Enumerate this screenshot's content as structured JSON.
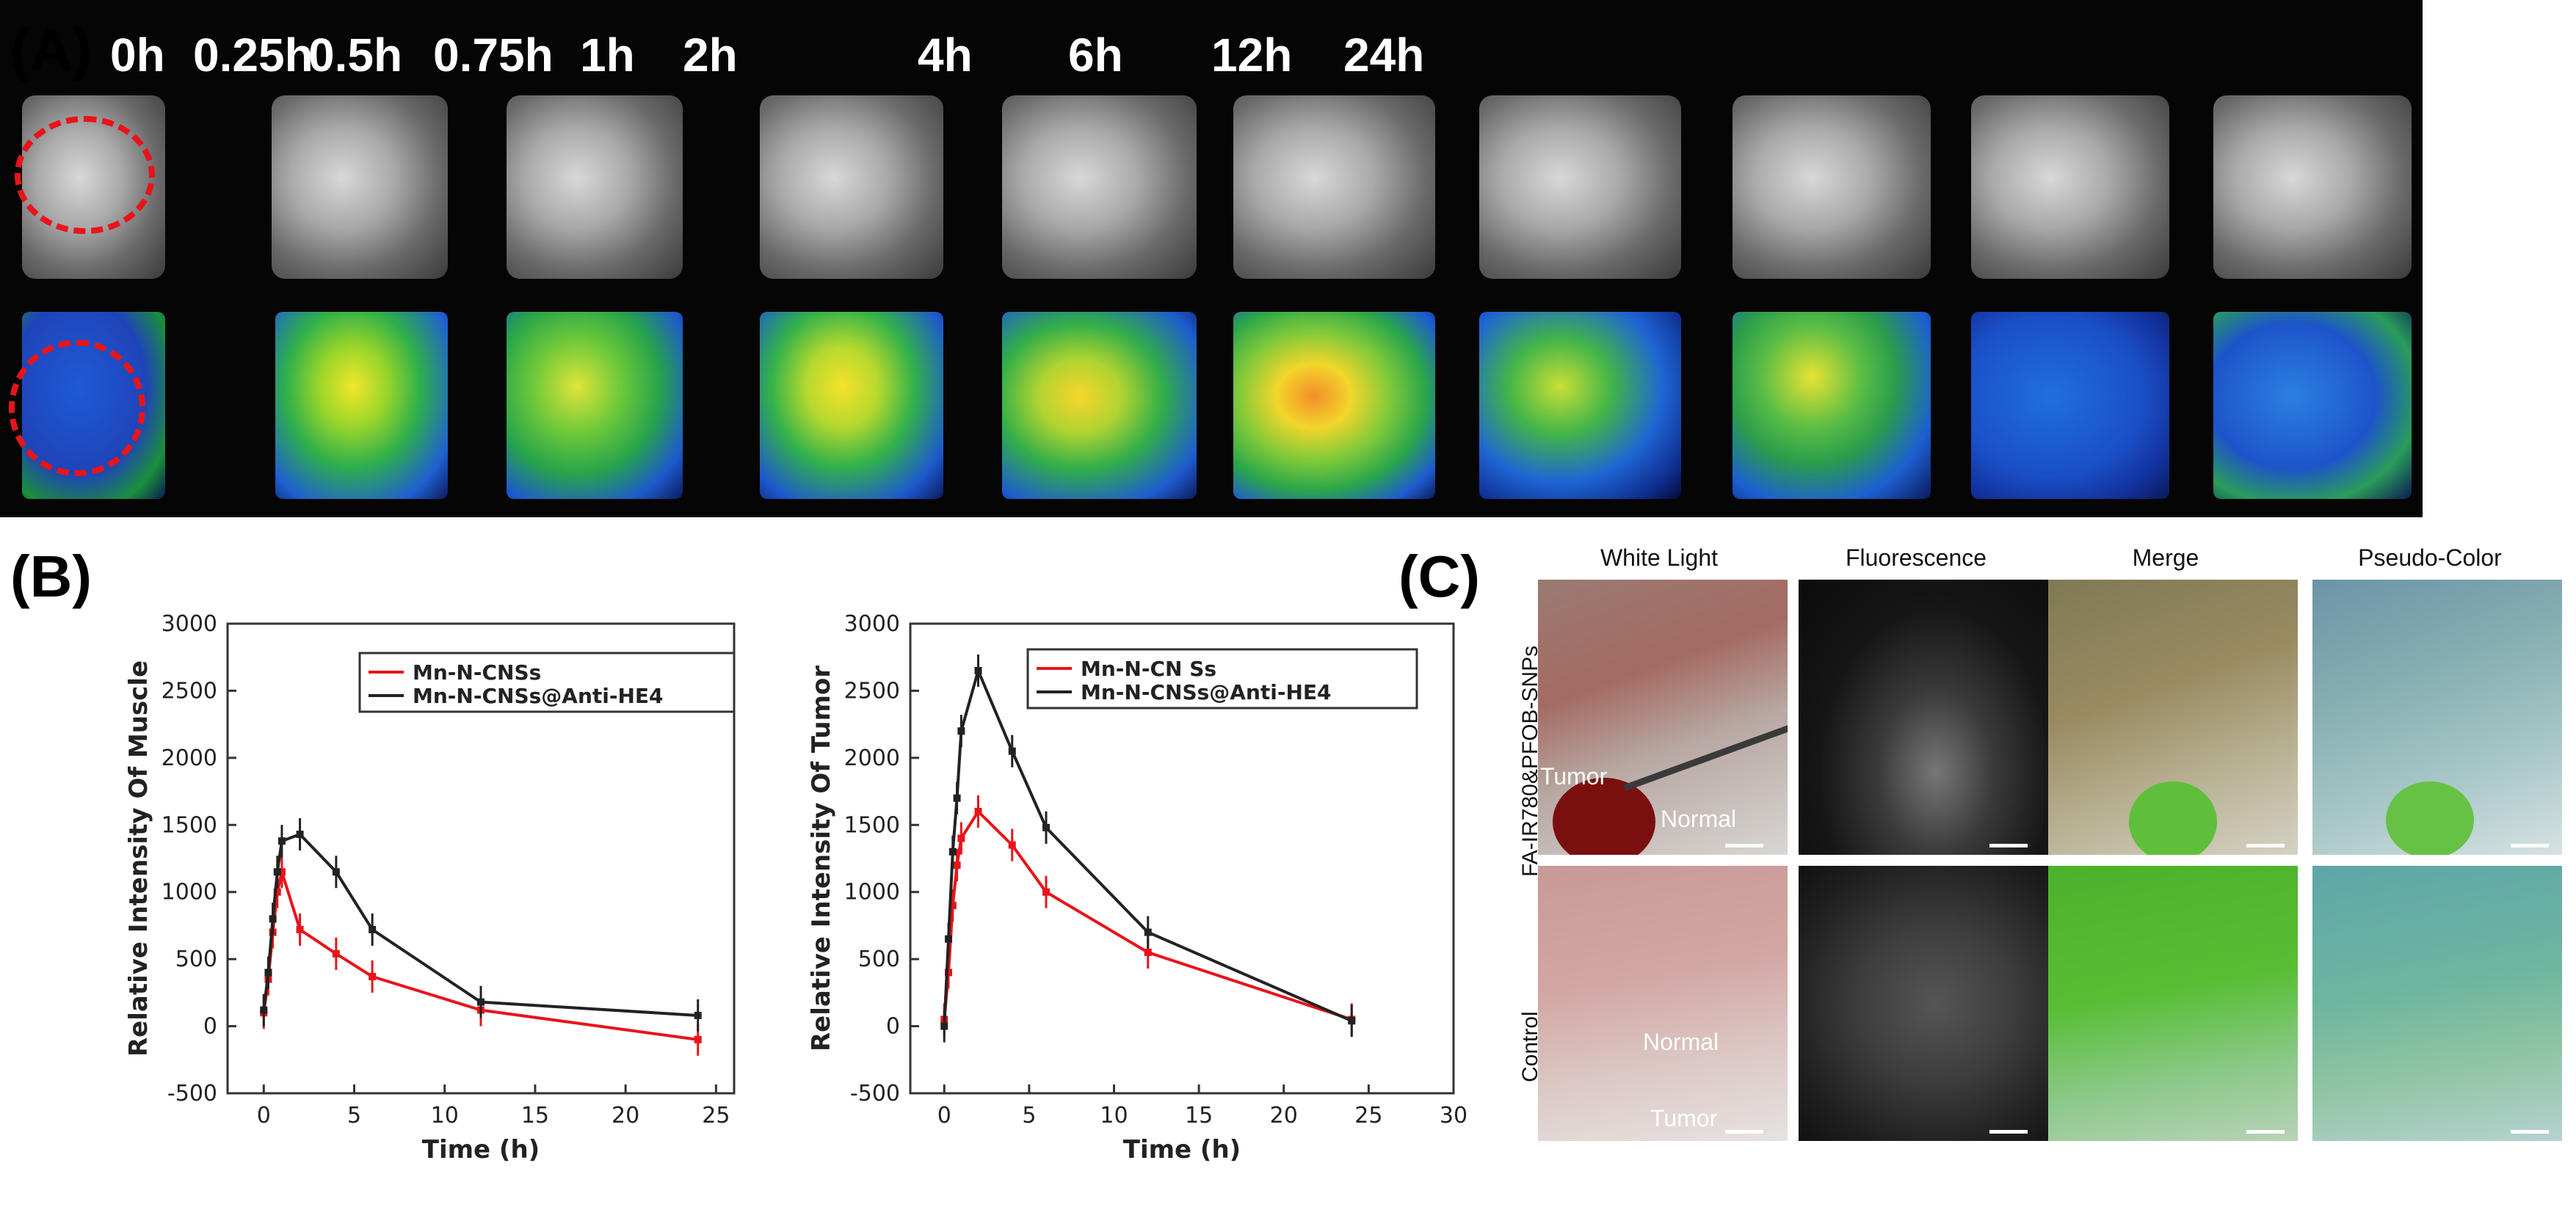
{
  "panel_a": {
    "letter": "(A)",
    "time_labels": [
      "0h",
      "0.25h",
      "0.5h",
      "0.75h",
      "1h",
      "2h",
      "4h",
      "6h",
      "12h",
      "24h"
    ]
  },
  "panel_b": {
    "letter": "(B)"
  },
  "panel_c": {
    "letter": "(C)",
    "column_titles": [
      "White Light",
      "Fluorescence",
      "Merge",
      "Pseudo-Color"
    ],
    "row_labels": [
      "FA-IR780&PFOB-SNPs",
      "Control"
    ],
    "annotations": {
      "tumor_top": "Tumor",
      "normal_top": "Normal",
      "normal_bottom": "Normal",
      "tumor_bottom": "Tumor"
    }
  },
  "chart_data": [
    {
      "type": "line",
      "title": "",
      "xlabel": "Time (h)",
      "ylabel": "Relative Intensity Of Muscle",
      "xlim": [
        -2,
        26
      ],
      "ylim": [
        -500,
        3000
      ],
      "xticks": [
        0,
        5,
        10,
        15,
        20,
        25
      ],
      "yticks": [
        -500,
        0,
        500,
        1000,
        1500,
        2000,
        2500,
        3000
      ],
      "legend": "top-right",
      "series": [
        {
          "name": "Mn-N-CNSs",
          "color": "#e8141a",
          "x": [
            0,
            0.25,
            0.5,
            0.75,
            1,
            2,
            4,
            6,
            12,
            24
          ],
          "y": [
            100,
            350,
            700,
            1000,
            1150,
            720,
            540,
            370,
            120,
            -100
          ]
        },
        {
          "name": "Mn-N-CNSs@Anti-HE4",
          "color": "#222222",
          "x": [
            0,
            0.25,
            0.5,
            0.75,
            1,
            2,
            4,
            6,
            12,
            24
          ],
          "y": [
            120,
            400,
            800,
            1150,
            1380,
            1430,
            1150,
            720,
            180,
            80
          ]
        }
      ]
    },
    {
      "type": "line",
      "title": "",
      "xlabel": "Time (h)",
      "ylabel": "Relative Intensity Of Tumor",
      "xlim": [
        -2,
        30
      ],
      "ylim": [
        -500,
        3000
      ],
      "xticks": [
        0,
        5,
        10,
        15,
        20,
        25,
        30
      ],
      "yticks": [
        -500,
        0,
        500,
        1000,
        1500,
        2000,
        2500,
        3000
      ],
      "legend": "top-right",
      "series": [
        {
          "name": "Mn-N-CN Ss",
          "color": "#e8141a",
          "x": [
            0,
            0.25,
            0.5,
            0.75,
            1,
            2,
            4,
            6,
            12,
            24
          ],
          "y": [
            50,
            400,
            900,
            1200,
            1400,
            1600,
            1350,
            1000,
            550,
            50
          ]
        },
        {
          "name": "Mn-N-CNSs@Anti-HE4",
          "color": "#222222",
          "x": [
            0,
            0.25,
            0.5,
            0.75,
            1,
            2,
            4,
            6,
            12,
            24
          ],
          "y": [
            0,
            650,
            1300,
            1700,
            2200,
            2650,
            2050,
            1480,
            700,
            40
          ]
        }
      ]
    }
  ]
}
